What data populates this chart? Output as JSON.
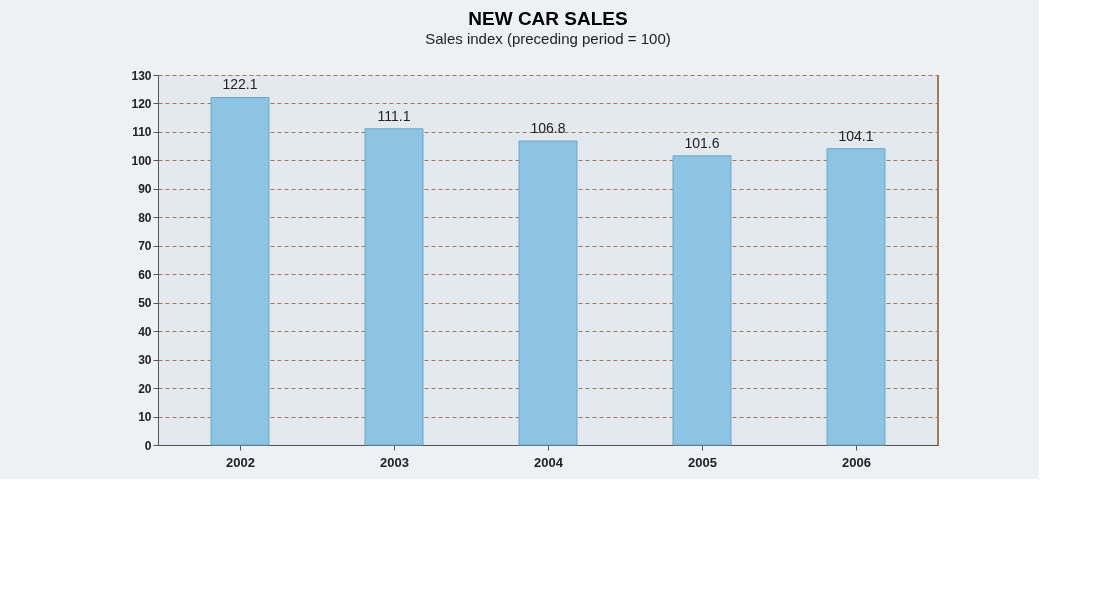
{
  "chart_data": {
    "type": "bar",
    "title": "NEW CAR SALES",
    "subtitle": "Sales index (preceding period = 100)",
    "categories": [
      "2002",
      "2003",
      "2004",
      "2005",
      "2006"
    ],
    "values": [
      122.1,
      111.1,
      106.8,
      101.6,
      104.1
    ],
    "color": "#8ec4e3",
    "ylim": [
      0,
      130
    ],
    "yticks": [
      0,
      10,
      20,
      30,
      40,
      50,
      60,
      70,
      80,
      90,
      100,
      110,
      120,
      130
    ],
    "grid": "y",
    "data_labels": true
  }
}
